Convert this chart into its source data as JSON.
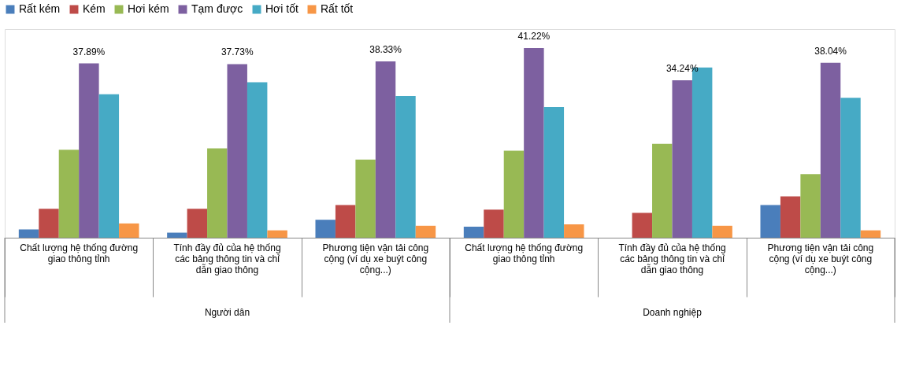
{
  "chart_data": {
    "type": "bar",
    "categories": [
      "Chất lượng hệ thống đường giao thông tỉnh",
      "Tính đầy đủ của hệ thống các bảng thông tin và chỉ dẫn giao thông",
      "Phương tiện vận tải công cộng (ví dụ xe buýt công cộng...)",
      "Chất lượng hệ thống đường giao thông tỉnh",
      "Tính đầy đủ của hệ thống các bảng thông tin và chỉ dẫn giao thông",
      "Phương tiện vận tải công cộng (ví dụ xe buýt công cộng...)"
    ],
    "series": [
      {
        "name": "Rất kém",
        "color": "#4a7ebb",
        "values": [
          1.8,
          1.1,
          3.9,
          2.4,
          0,
          7.1
        ]
      },
      {
        "name": "Kém",
        "color": "#be4b48",
        "values": [
          6.3,
          6.3,
          7.1,
          6.1,
          5.4,
          9.0
        ]
      },
      {
        "name": "Hơi kém",
        "color": "#98b954",
        "values": [
          19.1,
          19.4,
          17.0,
          18.9,
          20.4,
          13.8
        ]
      },
      {
        "name": "Tạm được",
        "color": "#7d60a0",
        "values": [
          37.89,
          37.73,
          38.33,
          41.22,
          34.24,
          38.04
        ],
        "value_labels": [
          "37.89%",
          "37.73%",
          "38.33%",
          "41.22%",
          "34.24%",
          "38.04%"
        ]
      },
      {
        "name": "Hơi tốt",
        "color": "#46aac5",
        "values": [
          31.2,
          33.8,
          30.8,
          28.4,
          37.0,
          30.4
        ]
      },
      {
        "name": "Rất tốt",
        "color": "#f79646",
        "values": [
          3.1,
          1.6,
          2.6,
          2.9,
          2.6,
          1.6
        ]
      }
    ],
    "annotations": [
      "Người dân",
      "Doanh nghiệp"
    ],
    "legend": "top"
  }
}
